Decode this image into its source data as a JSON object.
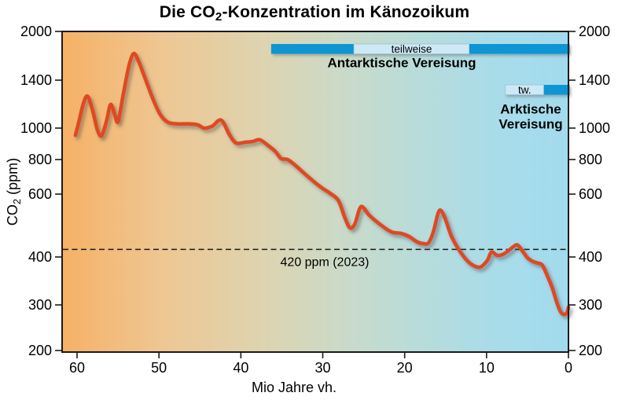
{
  "title": {
    "part1": "Die CO",
    "sub": "2",
    "part2": "-Konzentration im Känozoikum"
  },
  "y_axis_title": {
    "part1": "CO",
    "sub": "2",
    "part2": " (ppm)"
  },
  "chart_data": {
    "type": "line",
    "title": "Die CO2-Konzentration im Känozoikum",
    "xlabel": "Mio Jahre vh.",
    "ylabel": "CO2 (ppm)",
    "x_axis": {
      "direction": "reversed_time_before_present",
      "unit": "Mio Jahre",
      "range_ma": [
        62,
        0
      ],
      "ticks_ma": [
        60,
        50,
        40,
        30,
        20,
        10,
        0
      ],
      "tick_labels": [
        "60",
        "50",
        "40",
        "30",
        "20",
        "10",
        "0"
      ]
    },
    "y_axis": {
      "scale": "quasi-logarithmic",
      "unit": "ppm",
      "range_ppm": [
        200,
        2000
      ],
      "ticks_ppm": [
        2000,
        1400,
        1000,
        800,
        600,
        400,
        300,
        200
      ],
      "tick_labels": [
        "2000",
        "1400",
        "1000",
        "800",
        "600",
        "400",
        "300",
        "200"
      ],
      "mirrored_right": true
    },
    "reference_line": {
      "value_ppm": 420,
      "label": "420 ppm (2023)",
      "style": "dashed"
    },
    "ice_bars": [
      {
        "name": "antarctic-glaciation",
        "label": "Antarktische Vereisung",
        "partial_label": "teilweise",
        "segments": [
          {
            "style": "full",
            "from_ma": 36.3,
            "to_ma": 26.2
          },
          {
            "style": "partial",
            "from_ma": 26.2,
            "to_ma": 12.1
          },
          {
            "style": "full",
            "from_ma": 12.1,
            "to_ma": 0
          }
        ]
      },
      {
        "name": "arctic-glaciation",
        "label_lines": [
          "Arktische",
          "Vereisung"
        ],
        "partial_label": "tw.",
        "segments": [
          {
            "style": "partial",
            "from_ma": 7.7,
            "to_ma": 3.0
          },
          {
            "style": "full",
            "from_ma": 3.0,
            "to_ma": 0
          }
        ]
      }
    ],
    "series": [
      {
        "name": "CO2-Konzentration",
        "color": "#df4a22",
        "points_ma_ppm": [
          [
            60.2,
            950
          ],
          [
            59.8,
            1040
          ],
          [
            59.2,
            1195
          ],
          [
            58.7,
            1250
          ],
          [
            58.1,
            1130
          ],
          [
            57.5,
            985
          ],
          [
            57.0,
            948
          ],
          [
            56.4,
            1052
          ],
          [
            55.9,
            1180
          ],
          [
            55.4,
            1100
          ],
          [
            55.0,
            1046
          ],
          [
            54.4,
            1250
          ],
          [
            53.7,
            1540
          ],
          [
            53.1,
            1700
          ],
          [
            52.5,
            1610
          ],
          [
            51.7,
            1420
          ],
          [
            50.7,
            1220
          ],
          [
            49.8,
            1095
          ],
          [
            48.9,
            1042
          ],
          [
            47.8,
            1030
          ],
          [
            46.5,
            1030
          ],
          [
            45.3,
            1024
          ],
          [
            44.5,
            1000
          ],
          [
            43.5,
            1014
          ],
          [
            42.4,
            1058
          ],
          [
            41.4,
            955
          ],
          [
            40.6,
            900
          ],
          [
            39.5,
            904
          ],
          [
            38.5,
            910
          ],
          [
            37.7,
            921
          ],
          [
            36.7,
            885
          ],
          [
            35.8,
            848
          ],
          [
            35.1,
            806
          ],
          [
            34.3,
            800
          ],
          [
            33.3,
            760
          ],
          [
            32.3,
            715
          ],
          [
            31.2,
            670
          ],
          [
            30.1,
            632
          ],
          [
            29.1,
            604
          ],
          [
            28.1,
            576
          ],
          [
            27.3,
            515
          ],
          [
            26.7,
            483
          ],
          [
            26.1,
            494
          ],
          [
            25.5,
            546
          ],
          [
            25.1,
            552
          ],
          [
            24.4,
            526
          ],
          [
            23.5,
            504
          ],
          [
            22.5,
            484
          ],
          [
            21.5,
            469
          ],
          [
            20.5,
            466
          ],
          [
            19.5,
            457
          ],
          [
            18.5,
            441
          ],
          [
            17.7,
            436
          ],
          [
            17.1,
            438
          ],
          [
            16.5,
            470
          ],
          [
            15.9,
            532
          ],
          [
            15.5,
            538
          ],
          [
            15.0,
            508
          ],
          [
            14.3,
            458
          ],
          [
            13.4,
            420
          ],
          [
            12.4,
            392
          ],
          [
            11.5,
            379
          ],
          [
            10.7,
            377
          ],
          [
            9.9,
            392
          ],
          [
            9.4,
            413
          ],
          [
            8.7,
            404
          ],
          [
            8.0,
            407
          ],
          [
            7.3,
            417
          ],
          [
            6.7,
            428
          ],
          [
            6.2,
            432
          ],
          [
            5.6,
            415
          ],
          [
            5.0,
            398
          ],
          [
            4.4,
            390
          ],
          [
            3.8,
            386
          ],
          [
            3.2,
            381
          ],
          [
            2.6,
            358
          ],
          [
            2.0,
            333
          ],
          [
            1.5,
            308
          ],
          [
            1.1,
            288
          ],
          [
            0.8,
            278
          ],
          [
            0.5,
            276
          ],
          [
            0.2,
            279
          ],
          [
            0.0,
            294
          ]
        ]
      }
    ],
    "legend": "none",
    "grid": "off",
    "colors": {
      "curve": "#df4a22",
      "ice_full": "#1195d4",
      "ice_partial": "#cee9f6",
      "ice_partial_border": "#9fc4d8",
      "reference_line": "#1b1b1b",
      "frame": "#1a1a1a",
      "text": "#000000",
      "background_gradient_stops": [
        [
          0.0,
          "#f6b166"
        ],
        [
          0.2,
          "#eec793"
        ],
        [
          0.4,
          "#ddd4b0"
        ],
        [
          0.55,
          "#cbdac8"
        ],
        [
          0.7,
          "#b8dcda"
        ],
        [
          0.85,
          "#a9dce9"
        ],
        [
          1.0,
          "#a2dbee"
        ]
      ]
    }
  }
}
